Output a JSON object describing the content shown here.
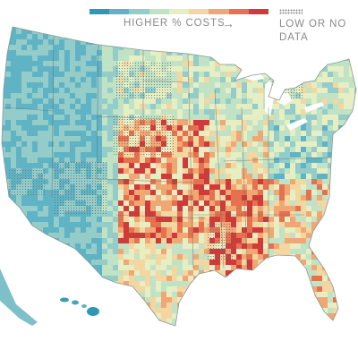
{
  "legend": {
    "scale_label": "HIGHER % COSTS",
    "arrow_icon": "right-arrow-icon",
    "nodata_label": "LOW OR NO DATA",
    "colors": [
      "#2e97b2",
      "#5fb3c4",
      "#93ccc9",
      "#c0e2c5",
      "#e6eec3",
      "#f4d6a1",
      "#f0a774",
      "#e6714f",
      "#cf3a3a"
    ]
  },
  "map": {
    "lake_color": "#ffffff",
    "state_border_color": "#5a6a6a",
    "nodata_dot_color": "#6b6b6b"
  }
}
